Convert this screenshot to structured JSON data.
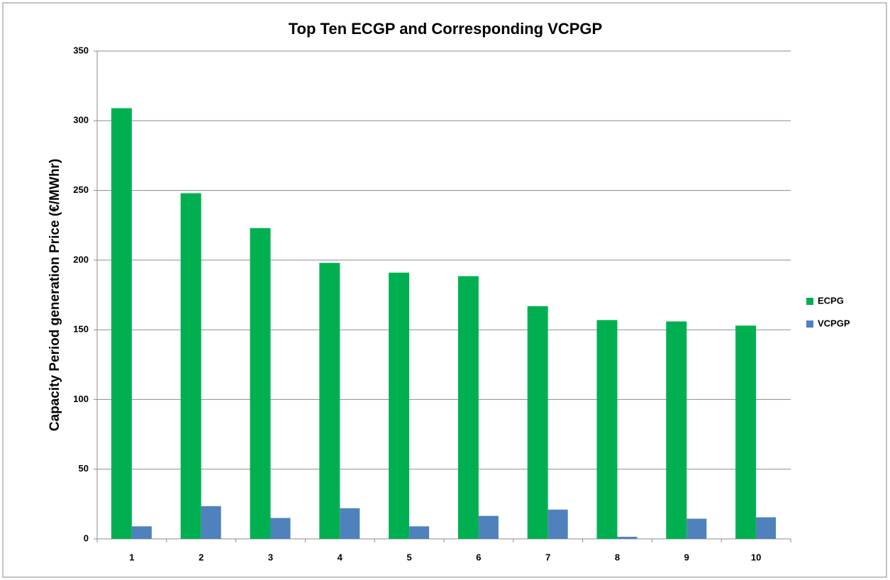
{
  "chart_data": {
    "type": "bar",
    "title": "Top Ten ECGP and Corresponding VCPGP",
    "y_label": "Capacity Period generation Price (€/MWhr)",
    "categories": [
      "1",
      "2",
      "3",
      "4",
      "5",
      "6",
      "7",
      "8",
      "9",
      "10"
    ],
    "series": [
      {
        "name": "ECPG",
        "color": "#00b050",
        "values": [
          309,
          248,
          223,
          198,
          191,
          188.5,
          167,
          157,
          156,
          153
        ]
      },
      {
        "name": "VCPGP",
        "color": "#4f81bd",
        "values": [
          9,
          23.5,
          15,
          22,
          9,
          16.5,
          21,
          1.5,
          14.5,
          15.5
        ]
      }
    ],
    "ylim": [
      0,
      350
    ],
    "yticks": [
      0,
      50,
      100,
      150,
      200,
      250,
      300,
      350
    ],
    "grid": true,
    "legend": "right"
  }
}
